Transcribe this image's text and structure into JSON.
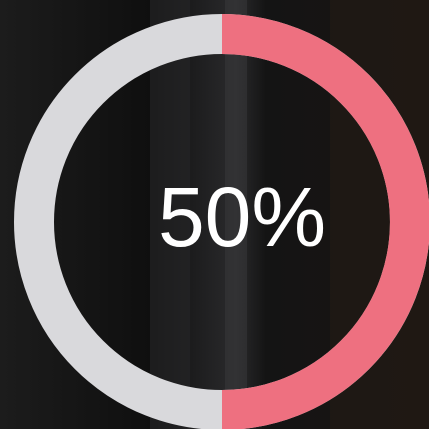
{
  "progress": {
    "value": 50,
    "value_label": "50%",
    "color": "#ee7080",
    "track_color": "#d9d9dc"
  }
}
